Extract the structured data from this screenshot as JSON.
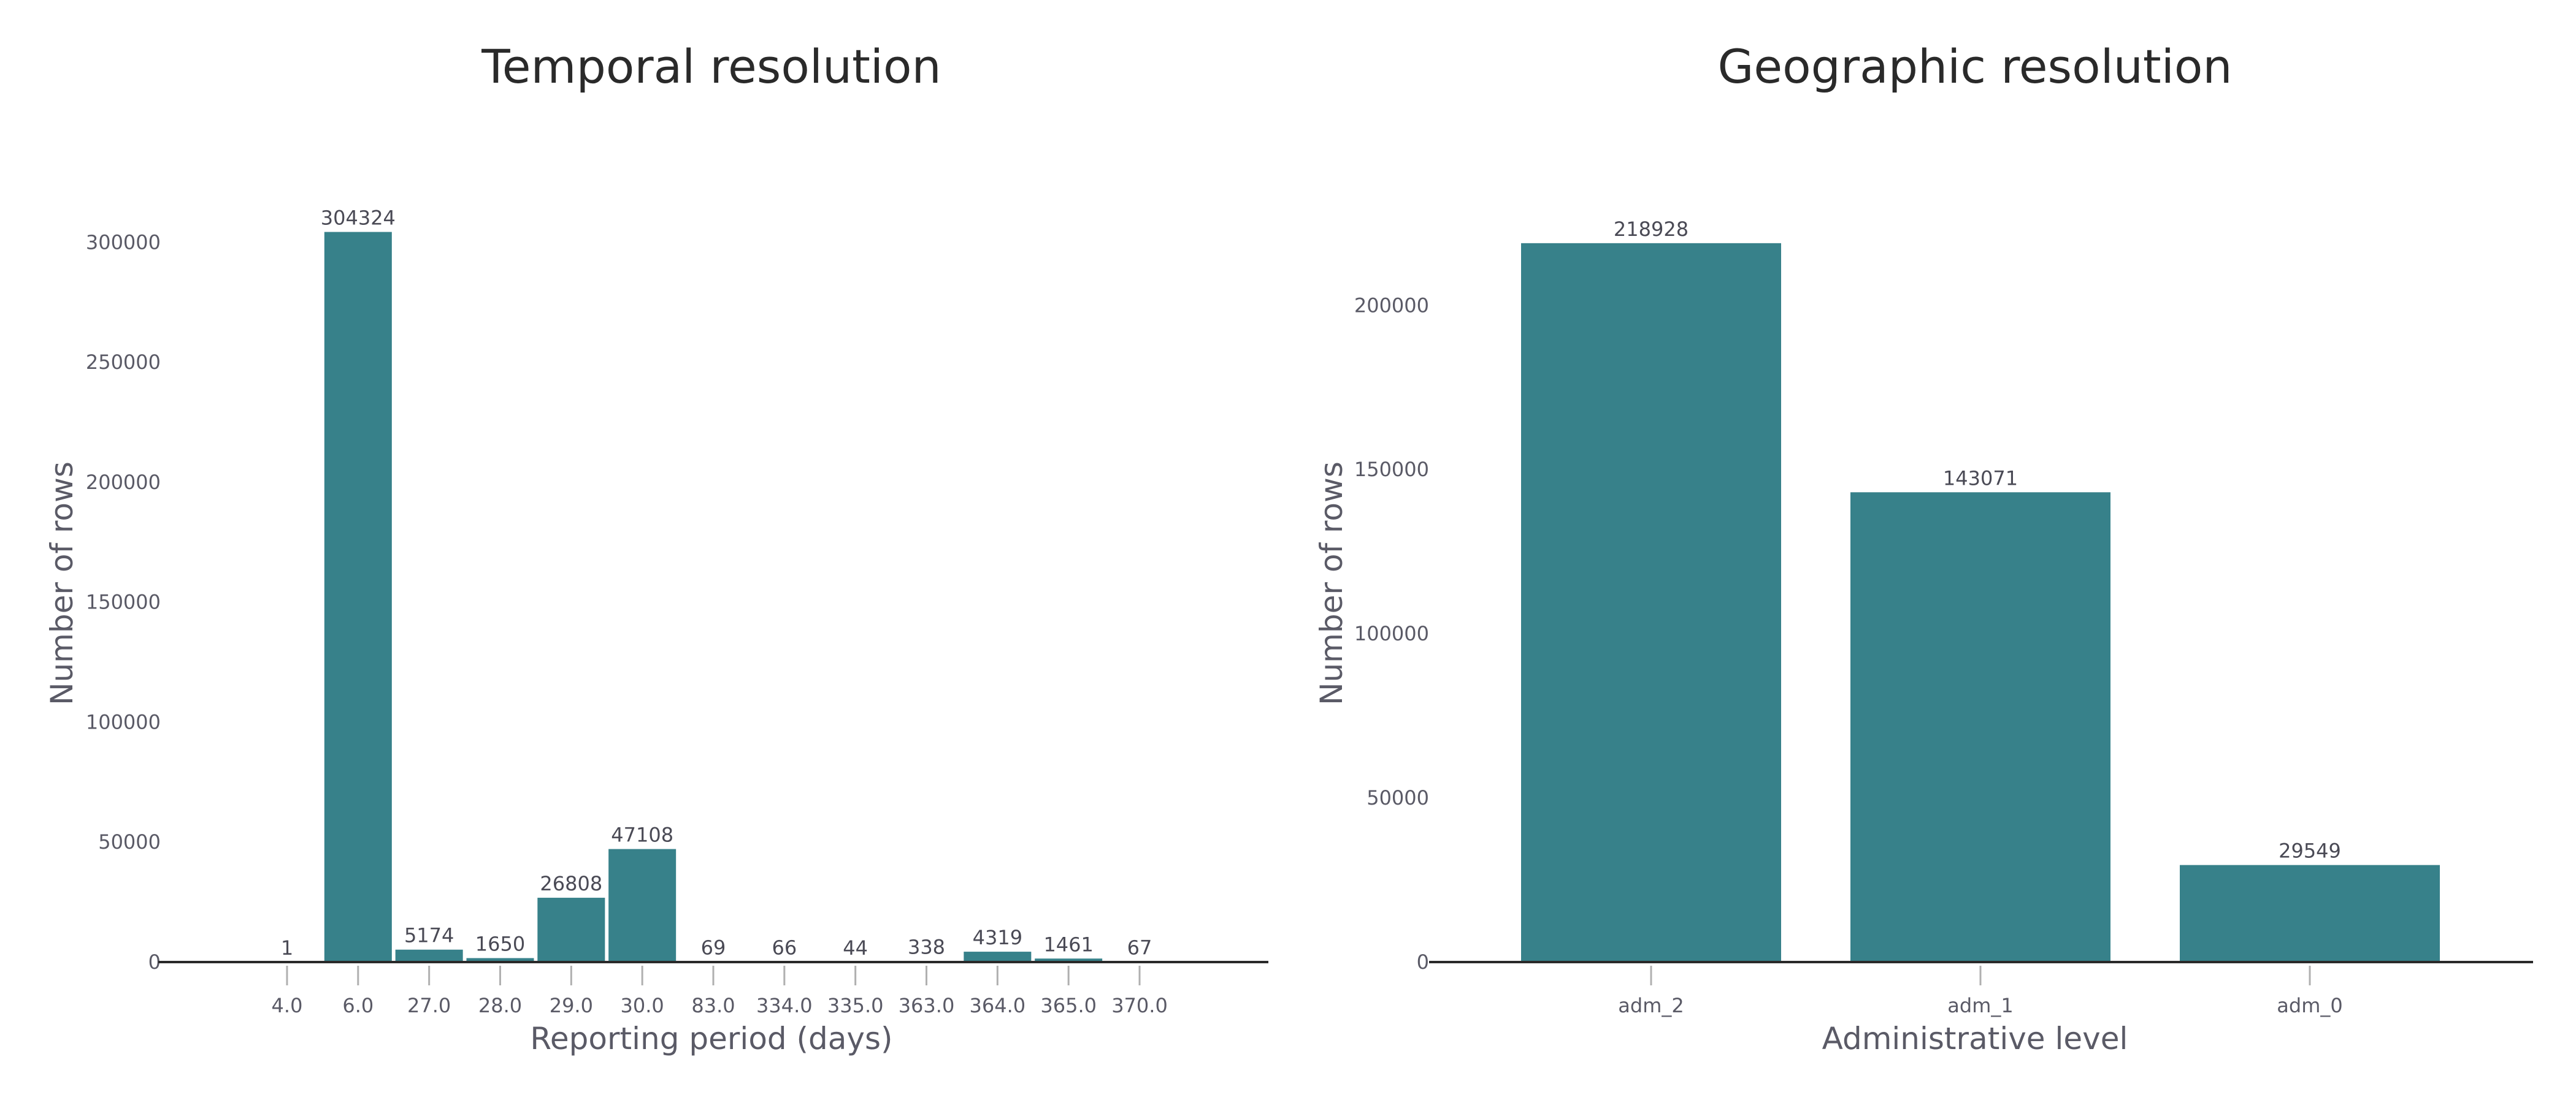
{
  "colors": {
    "bar": "#37818a",
    "axis": "#2a2a2a",
    "tick": "#b0b0b0",
    "text": "#5a5a66"
  },
  "chart_data": [
    {
      "type": "bar",
      "title": "Temporal resolution",
      "xlabel": "Reporting period (days)",
      "ylabel": "Number of rows",
      "ylim": [
        0,
        330000
      ],
      "yticks": [
        0,
        50000,
        100000,
        150000,
        200000,
        250000,
        300000
      ],
      "categories": [
        "4.0",
        "6.0",
        "27.0",
        "28.0",
        "29.0",
        "30.0",
        "83.0",
        "334.0",
        "335.0",
        "363.0",
        "364.0",
        "365.0",
        "370.0"
      ],
      "values": [
        1,
        304324,
        5174,
        1650,
        26808,
        47108,
        69,
        66,
        44,
        338,
        4319,
        1461,
        67
      ],
      "grid": false
    },
    {
      "type": "bar",
      "title": "Geographic resolution",
      "xlabel": "Administrative level",
      "ylabel": "Number of rows",
      "ylim": [
        0,
        237000
      ],
      "yticks": [
        0,
        50000,
        100000,
        150000,
        200000
      ],
      "categories": [
        "adm_2",
        "adm_1",
        "adm_0"
      ],
      "values": [
        218928,
        143071,
        29549
      ],
      "grid": false
    }
  ]
}
